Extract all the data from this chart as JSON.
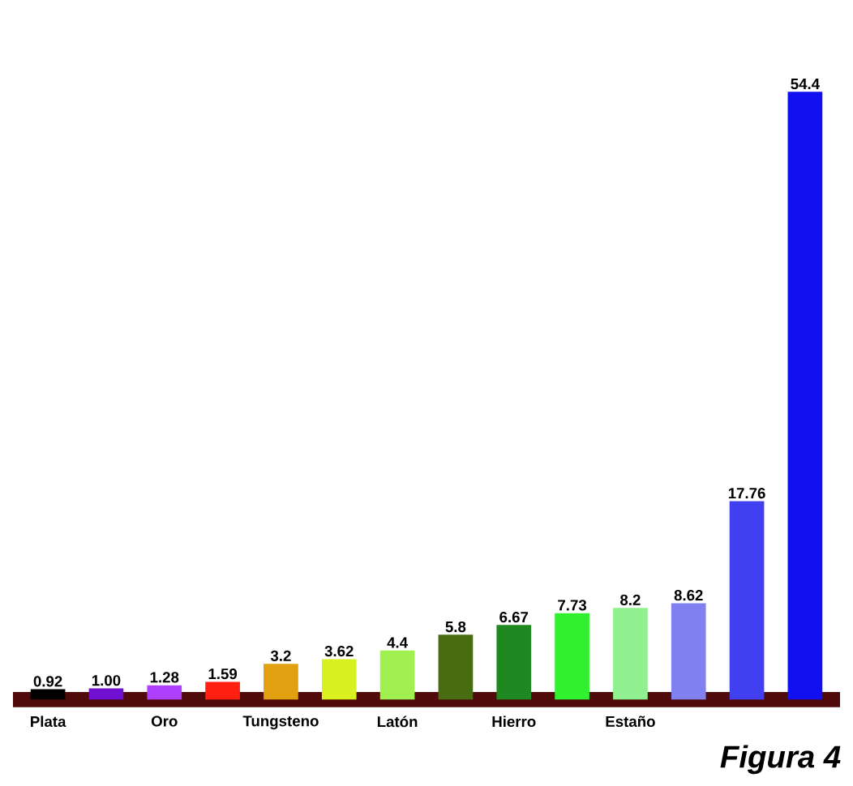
{
  "chart_data": {
    "type": "bar",
    "categories": [
      "Plata",
      null,
      "Oro",
      null,
      "Tungsteno",
      null,
      "Latón",
      null,
      "Hierro",
      null,
      "Estaño",
      null,
      null,
      null
    ],
    "values": [
      0.92,
      1.0,
      1.28,
      1.59,
      3.2,
      3.62,
      4.4,
      5.8,
      6.67,
      7.73,
      8.2,
      8.62,
      17.76,
      54.4
    ],
    "value_labels": [
      "0.92",
      "1.00",
      "1.28",
      "1.59",
      "3.2",
      "3.62",
      "4.4",
      "5.8",
      "6.67",
      "7.73",
      "8.2",
      "8.62",
      "17.76",
      "54.4"
    ],
    "colors": [
      "#000000",
      "#7010d0",
      "#b040ff",
      "#ff2010",
      "#e0a010",
      "#d8f020",
      "#a0f050",
      "#486c10",
      "#208820",
      "#30f030",
      "#90f090",
      "#8080f0",
      "#4040f0",
      "#1010f0"
    ],
    "annotations": [
      "Figura 4"
    ]
  }
}
